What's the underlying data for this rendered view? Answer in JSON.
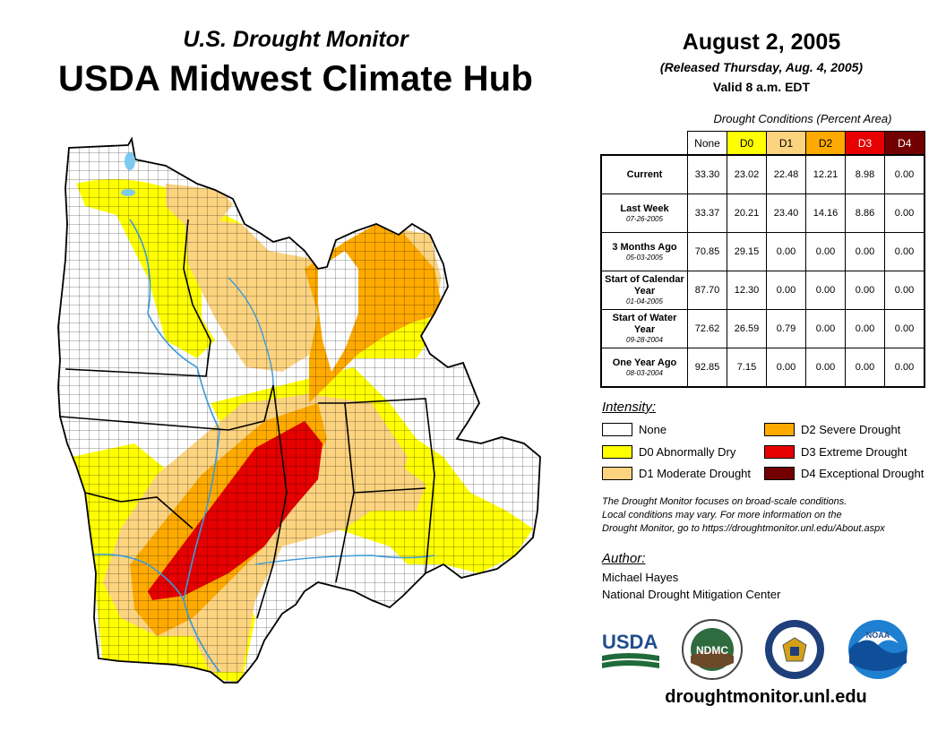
{
  "header": {
    "supertitle": "U.S. Drought Monitor",
    "title": "USDA Midwest Climate Hub",
    "date": "August 2, 2005",
    "released": "(Released Thursday, Aug. 4, 2005)",
    "valid": "Valid 8 a.m. EDT"
  },
  "table": {
    "caption": "Drought Conditions (Percent Area)",
    "columns": [
      "None",
      "D0",
      "D1",
      "D2",
      "D3",
      "D4"
    ],
    "column_colors": [
      "#ffffff",
      "#ffff00",
      "#fcd37f",
      "#ffaa00",
      "#e60000",
      "#730000"
    ],
    "rows": [
      {
        "label": "Current",
        "date": "",
        "values": [
          "33.30",
          "23.02",
          "22.48",
          "12.21",
          "8.98",
          "0.00"
        ]
      },
      {
        "label": "Last Week",
        "date": "07-26-2005",
        "values": [
          "33.37",
          "20.21",
          "23.40",
          "14.16",
          "8.86",
          "0.00"
        ]
      },
      {
        "label": "3 Months Ago",
        "date": "05-03-2005",
        "values": [
          "70.85",
          "29.15",
          "0.00",
          "0.00",
          "0.00",
          "0.00"
        ]
      },
      {
        "label": "Start of Calendar Year",
        "date": "01-04-2005",
        "values": [
          "87.70",
          "12.30",
          "0.00",
          "0.00",
          "0.00",
          "0.00"
        ]
      },
      {
        "label": "Start of Water Year",
        "date": "09-28-2004",
        "values": [
          "72.62",
          "26.59",
          "0.79",
          "0.00",
          "0.00",
          "0.00"
        ]
      },
      {
        "label": "One Year Ago",
        "date": "08-03-2004",
        "values": [
          "92.85",
          "7.15",
          "0.00",
          "0.00",
          "0.00",
          "0.00"
        ]
      }
    ]
  },
  "legend": {
    "title": "Intensity:",
    "items": [
      {
        "label": "None",
        "color": "#ffffff"
      },
      {
        "label": "D0 Abnormally Dry",
        "color": "#ffff00"
      },
      {
        "label": "D1 Moderate Drought",
        "color": "#fcd37f"
      },
      {
        "label": "D2 Severe Drought",
        "color": "#ffaa00"
      },
      {
        "label": "D3 Extreme Drought",
        "color": "#e60000"
      },
      {
        "label": "D4 Exceptional Drought",
        "color": "#730000"
      }
    ]
  },
  "note": {
    "line1": "The Drought Monitor focuses on broad-scale conditions.",
    "line2": "Local conditions may vary. For more information on the",
    "line3": "Drought Monitor, go to https://droughtmonitor.unl.edu/About.aspx"
  },
  "author": {
    "title": "Author:",
    "name": "Michael Hayes",
    "org": "National Drought Mitigation Center"
  },
  "logos": {
    "usda": "USDA",
    "ndmc": "NDMC",
    "noaa": "NOAA",
    "usda_icon": "usda-logo-icon",
    "ndmc_icon": "ndmc-seal-icon",
    "commerce_icon": "commerce-seal-icon",
    "noaa_icon": "noaa-logo-icon"
  },
  "footer": {
    "website": "droughtmonitor.unl.edu"
  },
  "map": {
    "colors": {
      "none": "#ffffff",
      "d0": "#ffff00",
      "d1": "#fcd37f",
      "d2": "#ffaa00",
      "d3": "#e60000",
      "d4": "#730000",
      "water": "#7ecbf0",
      "river": "#3a9ad9",
      "border": "#000000"
    }
  }
}
